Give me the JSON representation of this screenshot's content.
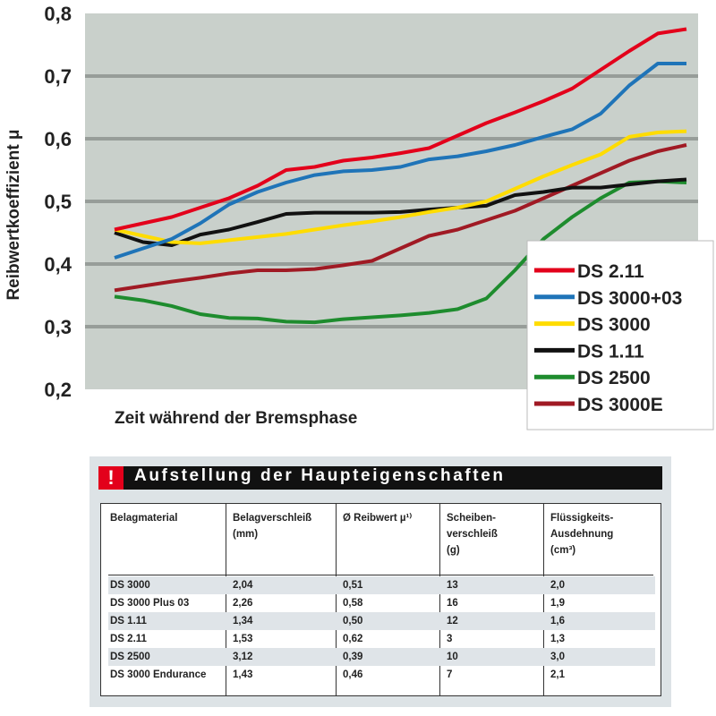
{
  "chart_data": {
    "type": "line",
    "ylabel": "Reibwertkoeffizient μ",
    "xlabel": "Zeit während der Bremsphase",
    "ylim": [
      0.2,
      0.8
    ],
    "yticks": [
      "0,2",
      "0,3",
      "0,4",
      "0,5",
      "0,6",
      "0,7",
      "0,8"
    ],
    "grid": true,
    "legend_position": "bottom-right",
    "background": "#c9d0cb",
    "series": [
      {
        "name": "DS 2.11",
        "color": "#e3001b",
        "values": [
          0.455,
          0.465,
          0.475,
          0.49,
          0.505,
          0.525,
          0.55,
          0.555,
          0.565,
          0.57,
          0.577,
          0.585,
          0.605,
          0.625,
          0.642,
          0.66,
          0.68,
          0.71,
          0.74,
          0.768,
          0.775
        ]
      },
      {
        "name": "DS 3000+03",
        "color": "#1f74b8",
        "values": [
          0.41,
          0.425,
          0.44,
          0.465,
          0.495,
          0.515,
          0.53,
          0.542,
          0.548,
          0.55,
          0.555,
          0.567,
          0.572,
          0.58,
          0.59,
          0.603,
          0.615,
          0.64,
          0.685,
          0.72,
          0.72
        ]
      },
      {
        "name": "DS 3000",
        "color": "#ffdc00",
        "values": [
          0.455,
          0.445,
          0.435,
          0.433,
          0.438,
          0.443,
          0.448,
          0.455,
          0.462,
          0.468,
          0.475,
          0.483,
          0.49,
          0.5,
          0.52,
          0.54,
          0.558,
          0.575,
          0.603,
          0.61,
          0.612
        ]
      },
      {
        "name": "DS 1.11",
        "color": "#111111",
        "values": [
          0.45,
          0.435,
          0.43,
          0.447,
          0.455,
          0.467,
          0.48,
          0.482,
          0.482,
          0.482,
          0.483,
          0.487,
          0.49,
          0.493,
          0.51,
          0.515,
          0.522,
          0.522,
          0.527,
          0.532,
          0.535
        ]
      },
      {
        "name": "DS 2500",
        "color": "#1e8c2e",
        "values": [
          0.348,
          0.342,
          0.333,
          0.32,
          0.314,
          0.313,
          0.308,
          0.307,
          0.312,
          0.315,
          0.318,
          0.322,
          0.328,
          0.345,
          0.39,
          0.44,
          0.475,
          0.505,
          0.53,
          0.532,
          0.53
        ]
      },
      {
        "name": "DS 3000E",
        "color": "#a01a24",
        "values": [
          0.358,
          0.365,
          0.372,
          0.378,
          0.385,
          0.39,
          0.39,
          0.392,
          0.398,
          0.405,
          0.425,
          0.445,
          0.455,
          0.47,
          0.485,
          0.505,
          0.525,
          0.545,
          0.565,
          0.58,
          0.59
        ]
      }
    ]
  },
  "table": {
    "title": "Aufstellung der Haupteigenschaften",
    "warning_icon": "!",
    "accent_color": "#e3001b",
    "headers": [
      "Belagmaterial",
      "Belagverschleiß\n(mm)",
      "Ø Reibwert µ¹⁾",
      "Scheiben-\nverschleiß\n(g)",
      "Flüssigkeits-\nAusdehnung\n(cm³)"
    ],
    "rows": [
      [
        "DS 3000",
        "2,04",
        "0,51",
        "13",
        "2,0"
      ],
      [
        "DS 3000 Plus 03",
        "2,26",
        "0,58",
        "16",
        "1,9"
      ],
      [
        "DS 1.11",
        "1,34",
        "0,50",
        "12",
        "1,6"
      ],
      [
        "DS 2.11",
        "1,53",
        "0,62",
        "3",
        "1,3"
      ],
      [
        "DS 2500",
        "3,12",
        "0,39",
        "10",
        "3,0"
      ],
      [
        "DS 3000 Endurance",
        "1,43",
        "0,46",
        "7",
        "2,1"
      ]
    ]
  }
}
